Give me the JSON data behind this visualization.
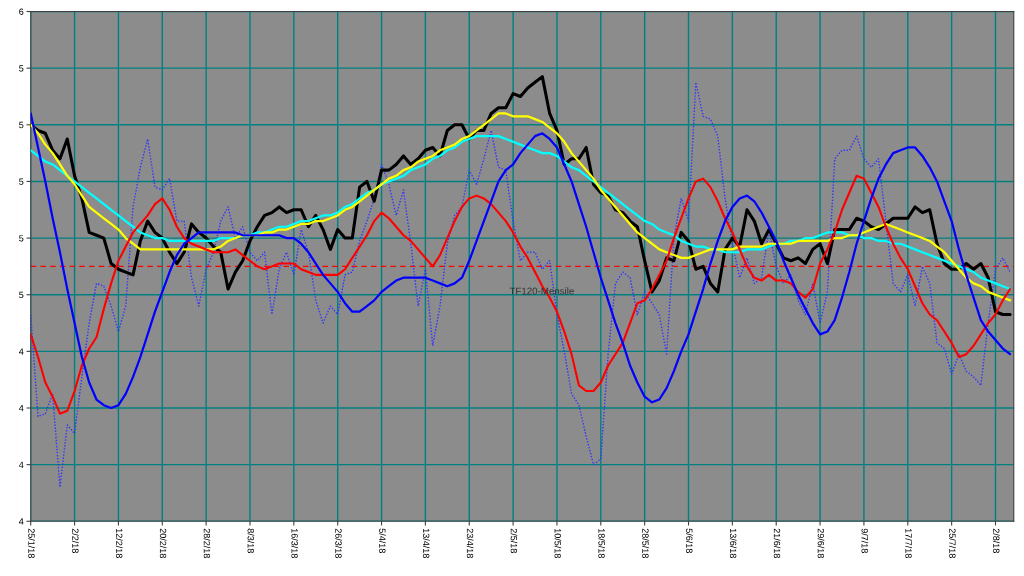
{
  "chart_data": {
    "type": "line",
    "categories": [
      "25/1/18",
      null,
      null,
      null,
      null,
      null,
      "2/2/18",
      null,
      null,
      null,
      null,
      null,
      "12/2/18",
      null,
      null,
      null,
      null,
      null,
      "20/2/18",
      null,
      null,
      null,
      null,
      null,
      "28/2/18",
      null,
      null,
      null,
      null,
      null,
      "8/3/18",
      null,
      null,
      null,
      null,
      null,
      "16/3/18",
      null,
      null,
      null,
      null,
      null,
      "26/3/18",
      null,
      null,
      null,
      null,
      null,
      "5/4/18",
      null,
      null,
      null,
      null,
      null,
      "13/4/18",
      null,
      null,
      null,
      null,
      null,
      "23/4/18",
      null,
      null,
      null,
      null,
      null,
      "2/5/18",
      null,
      null,
      null,
      null,
      null,
      "10/5/18",
      null,
      null,
      null,
      null,
      null,
      "18/5/18",
      null,
      null,
      null,
      null,
      null,
      "28/5/18",
      null,
      null,
      null,
      null,
      null,
      "5/6/18",
      null,
      null,
      null,
      null,
      null,
      "13/6/18",
      null,
      null,
      null,
      null,
      null,
      "21/6/18",
      null,
      null,
      null,
      null,
      null,
      "29/6/18",
      null,
      null,
      null,
      null,
      null,
      "9/7/18",
      null,
      null,
      null,
      null,
      null,
      "17/7/18",
      null,
      null,
      null,
      null,
      null,
      "25/7/18",
      null,
      null,
      null,
      null,
      null,
      "2/8/18",
      null,
      null
    ],
    "series": [
      {
        "color": "#3333ff",
        "line_style": "dotted",
        "values": [
          4.53,
          4.17,
          4.18,
          4.25,
          3.92,
          4.14,
          4.11,
          4.31,
          4.5,
          4.64,
          4.63,
          4.56,
          4.47,
          4.56,
          4.91,
          5.05,
          5.15,
          4.98,
          4.97,
          5.01,
          4.86,
          4.86,
          4.66,
          4.56,
          4.69,
          4.75,
          4.86,
          4.91,
          4.8,
          4.84,
          4.75,
          4.72,
          4.75,
          4.53,
          4.69,
          4.75,
          4.67,
          4.83,
          4.75,
          4.58,
          4.5,
          4.56,
          4.53,
          4.67,
          4.68,
          4.79,
          4.86,
          4.94,
          5.06,
          4.99,
          4.88,
          4.97,
          4.78,
          4.56,
          4.69,
          4.42,
          4.56,
          4.78,
          4.88,
          4.91,
          5.04,
          4.99,
          5.08,
          5.18,
          5.05,
          5.04,
          4.86,
          4.72,
          4.75,
          4.75,
          4.69,
          4.72,
          4.53,
          4.4,
          4.25,
          4.21,
          4.1,
          4.0,
          4.02,
          4.39,
          4.64,
          4.68,
          4.66,
          4.53,
          4.61,
          4.57,
          4.53,
          4.39,
          4.8,
          4.94,
          4.86,
          5.35,
          5.23,
          5.22,
          5.16,
          4.94,
          4.78,
          4.66,
          4.73,
          4.64,
          4.66,
          4.83,
          4.7,
          4.64,
          4.67,
          4.58,
          4.53,
          4.64,
          4.5,
          4.61,
          5.08,
          5.11,
          5.11,
          5.16,
          5.08,
          5.05,
          5.08,
          4.86,
          4.64,
          4.61,
          4.67,
          4.56,
          4.7,
          4.64,
          4.43,
          4.41,
          4.32,
          4.39,
          4.33,
          4.31,
          4.28,
          4.5,
          4.69,
          4.73,
          4.68
        ]
      },
      {
        "color": "#000000",
        "values": [
          5.2,
          5.18,
          5.17,
          5.11,
          5.08,
          5.15,
          5.02,
          4.94,
          4.82,
          4.81,
          4.8,
          4.71,
          4.69,
          4.68,
          4.67,
          4.79,
          4.86,
          4.82,
          4.8,
          4.75,
          4.71,
          4.75,
          4.85,
          4.82,
          4.8,
          4.77,
          4.75,
          4.62,
          4.68,
          4.72,
          4.79,
          4.84,
          4.88,
          4.89,
          4.91,
          4.89,
          4.9,
          4.9,
          4.84,
          4.88,
          4.83,
          4.76,
          4.83,
          4.8,
          4.8,
          4.98,
          5.0,
          4.93,
          5.04,
          5.04,
          5.06,
          5.09,
          5.06,
          5.08,
          5.11,
          5.12,
          5.09,
          5.18,
          5.2,
          5.2,
          5.15,
          5.18,
          5.18,
          5.24,
          5.26,
          5.26,
          5.31,
          5.3,
          5.33,
          5.35,
          5.37,
          5.24,
          5.18,
          5.06,
          5.08,
          5.08,
          5.12,
          4.99,
          4.96,
          4.95,
          4.9,
          4.89,
          4.86,
          4.84,
          4.72,
          4.61,
          4.65,
          4.73,
          4.72,
          4.82,
          4.79,
          4.69,
          4.7,
          4.64,
          4.61,
          4.76,
          4.8,
          4.77,
          4.9,
          4.86,
          4.78,
          4.83,
          4.78,
          4.73,
          4.72,
          4.73,
          4.71,
          4.76,
          4.78,
          4.71,
          4.83,
          4.83,
          4.83,
          4.87,
          4.86,
          4.84,
          4.83,
          4.85,
          4.87,
          4.87,
          4.87,
          4.91,
          4.89,
          4.9,
          4.78,
          4.71,
          4.69,
          4.69,
          4.71,
          4.69,
          4.71,
          4.66,
          4.54,
          4.53,
          4.53
        ]
      },
      {
        "color": "#00ffff",
        "values": [
          5.11,
          5.09,
          5.07,
          5.06,
          5.04,
          5.02,
          5.0,
          4.98,
          4.96,
          4.94,
          4.92,
          4.9,
          4.88,
          4.86,
          4.84,
          4.82,
          4.81,
          4.8,
          4.8,
          4.79,
          4.79,
          4.79,
          4.79,
          4.79,
          4.79,
          4.79,
          4.8,
          4.8,
          4.8,
          4.81,
          4.81,
          4.82,
          4.82,
          4.83,
          4.84,
          4.84,
          4.85,
          4.86,
          4.86,
          4.87,
          4.88,
          4.88,
          4.89,
          4.91,
          4.92,
          4.94,
          4.96,
          4.97,
          4.99,
          5.0,
          5.01,
          5.02,
          5.04,
          5.05,
          5.06,
          5.08,
          5.09,
          5.11,
          5.12,
          5.14,
          5.15,
          5.16,
          5.16,
          5.16,
          5.16,
          5.15,
          5.14,
          5.13,
          5.12,
          5.11,
          5.1,
          5.1,
          5.09,
          5.07,
          5.05,
          5.04,
          5.02,
          5.0,
          4.98,
          4.96,
          4.94,
          4.92,
          4.9,
          4.88,
          4.86,
          4.85,
          4.83,
          4.82,
          4.81,
          4.79,
          4.78,
          4.77,
          4.77,
          4.76,
          4.76,
          4.75,
          4.75,
          4.75,
          4.76,
          4.76,
          4.76,
          4.77,
          4.78,
          4.78,
          4.79,
          4.79,
          4.8,
          4.8,
          4.81,
          4.82,
          4.82,
          4.82,
          4.81,
          4.81,
          4.8,
          4.8,
          4.79,
          4.79,
          4.78,
          4.78,
          4.77,
          4.76,
          4.75,
          4.74,
          4.73,
          4.72,
          4.71,
          4.7,
          4.69,
          4.68,
          4.66,
          4.65,
          4.64,
          4.63,
          4.62
        ]
      },
      {
        "color": "#ffff00",
        "values": [
          5.2,
          5.17,
          5.13,
          5.1,
          5.06,
          5.02,
          4.99,
          4.95,
          4.91,
          4.89,
          4.87,
          4.85,
          4.83,
          4.8,
          4.78,
          4.76,
          4.76,
          4.76,
          4.76,
          4.76,
          4.76,
          4.76,
          4.76,
          4.76,
          4.76,
          4.76,
          4.77,
          4.79,
          4.8,
          4.81,
          4.81,
          4.81,
          4.82,
          4.82,
          4.83,
          4.83,
          4.84,
          4.85,
          4.85,
          4.86,
          4.86,
          4.87,
          4.88,
          4.9,
          4.91,
          4.93,
          4.95,
          4.97,
          4.99,
          5.01,
          5.02,
          5.04,
          5.05,
          5.07,
          5.08,
          5.09,
          5.11,
          5.12,
          5.13,
          5.15,
          5.16,
          5.18,
          5.2,
          5.22,
          5.24,
          5.24,
          5.23,
          5.23,
          5.23,
          5.22,
          5.21,
          5.19,
          5.17,
          5.14,
          5.1,
          5.07,
          5.04,
          5.01,
          4.97,
          4.94,
          4.91,
          4.88,
          4.85,
          4.82,
          4.8,
          4.78,
          4.76,
          4.75,
          4.74,
          4.73,
          4.73,
          4.74,
          4.75,
          4.76,
          4.76,
          4.76,
          4.76,
          4.77,
          4.77,
          4.77,
          4.77,
          4.78,
          4.78,
          4.78,
          4.78,
          4.79,
          4.79,
          4.79,
          4.79,
          4.79,
          4.8,
          4.8,
          4.81,
          4.81,
          4.82,
          4.83,
          4.84,
          4.85,
          4.84,
          4.83,
          4.82,
          4.81,
          4.8,
          4.79,
          4.77,
          4.75,
          4.72,
          4.69,
          4.66,
          4.64,
          4.63,
          4.61,
          4.6,
          4.59,
          4.58
        ]
      },
      {
        "color": "#ff0000",
        "values": [
          4.46,
          4.38,
          4.29,
          4.24,
          4.18,
          4.19,
          4.26,
          4.35,
          4.41,
          4.45,
          4.55,
          4.64,
          4.72,
          4.77,
          4.82,
          4.85,
          4.88,
          4.92,
          4.94,
          4.9,
          4.84,
          4.8,
          4.78,
          4.77,
          4.76,
          4.75,
          4.75,
          4.75,
          4.76,
          4.74,
          4.72,
          4.7,
          4.69,
          4.7,
          4.71,
          4.71,
          4.71,
          4.69,
          4.68,
          4.67,
          4.67,
          4.67,
          4.67,
          4.69,
          4.73,
          4.77,
          4.81,
          4.86,
          4.89,
          4.87,
          4.84,
          4.81,
          4.79,
          4.76,
          4.73,
          4.7,
          4.74,
          4.8,
          4.86,
          4.91,
          4.94,
          4.95,
          4.94,
          4.92,
          4.89,
          4.86,
          4.82,
          4.77,
          4.73,
          4.68,
          4.63,
          4.59,
          4.54,
          4.47,
          4.39,
          4.28,
          4.26,
          4.26,
          4.29,
          4.35,
          4.39,
          4.43,
          4.5,
          4.57,
          4.58,
          4.62,
          4.67,
          4.72,
          4.8,
          4.87,
          4.94,
          5.0,
          5.01,
          4.98,
          4.93,
          4.87,
          4.82,
          4.76,
          4.7,
          4.66,
          4.65,
          4.67,
          4.65,
          4.65,
          4.64,
          4.61,
          4.59,
          4.62,
          4.71,
          4.76,
          4.82,
          4.9,
          4.96,
          5.02,
          5.01,
          4.96,
          4.91,
          4.84,
          4.78,
          4.73,
          4.69,
          4.63,
          4.57,
          4.53,
          4.51,
          4.47,
          4.43,
          4.38,
          4.39,
          4.42,
          4.46,
          4.5,
          4.53,
          4.58,
          4.62
        ]
      },
      {
        "color": "#0000ff",
        "values": [
          5.24,
          5.12,
          5.0,
          4.87,
          4.75,
          4.62,
          4.5,
          4.38,
          4.29,
          4.23,
          4.21,
          4.2,
          4.21,
          4.25,
          4.31,
          4.38,
          4.46,
          4.54,
          4.61,
          4.68,
          4.74,
          4.78,
          4.8,
          4.82,
          4.82,
          4.82,
          4.82,
          4.82,
          4.82,
          4.81,
          4.81,
          4.81,
          4.81,
          4.81,
          4.81,
          4.8,
          4.8,
          4.78,
          4.75,
          4.71,
          4.67,
          4.64,
          4.61,
          4.57,
          4.54,
          4.54,
          4.56,
          4.58,
          4.61,
          4.63,
          4.65,
          4.66,
          4.66,
          4.66,
          4.66,
          4.65,
          4.64,
          4.63,
          4.64,
          4.66,
          4.72,
          4.79,
          4.86,
          4.93,
          5.0,
          5.04,
          5.06,
          5.1,
          5.13,
          5.16,
          5.17,
          5.15,
          5.12,
          5.06,
          5.0,
          4.92,
          4.84,
          4.75,
          4.66,
          4.58,
          4.5,
          4.43,
          4.35,
          4.29,
          4.24,
          4.22,
          4.23,
          4.27,
          4.33,
          4.4,
          4.46,
          4.54,
          4.62,
          4.71,
          4.79,
          4.86,
          4.91,
          4.94,
          4.95,
          4.93,
          4.89,
          4.84,
          4.79,
          4.72,
          4.66,
          4.6,
          4.55,
          4.5,
          4.46,
          4.47,
          4.51,
          4.59,
          4.68,
          4.78,
          4.86,
          4.94,
          5.01,
          5.06,
          5.1,
          5.11,
          5.12,
          5.12,
          5.09,
          5.05,
          5.0,
          4.93,
          4.86,
          4.76,
          4.67,
          4.59,
          4.51,
          4.47,
          4.44,
          4.41,
          4.39
        ]
      }
    ],
    "ylim": [
      3.8,
      5.6
    ],
    "yticks": [
      {
        "value": 3.8,
        "label": "4"
      },
      {
        "value": 4.0,
        "label": "4"
      },
      {
        "value": 4.2,
        "label": "4"
      },
      {
        "value": 4.4,
        "label": "4"
      },
      {
        "value": 4.6,
        "label": "5"
      },
      {
        "value": 4.8,
        "label": "5"
      },
      {
        "value": 5.0,
        "label": "5"
      },
      {
        "value": 5.2,
        "label": "5"
      },
      {
        "value": 5.4,
        "label": "5"
      },
      {
        "value": 5.6,
        "label": "6"
      }
    ],
    "ref_lines": [
      {
        "axis": "y",
        "value": 4.7,
        "color": "#ff0000",
        "line_style": "dashed"
      }
    ],
    "annotations": [
      "TF120-Mensile"
    ],
    "grid": true,
    "line_style": "solid"
  }
}
